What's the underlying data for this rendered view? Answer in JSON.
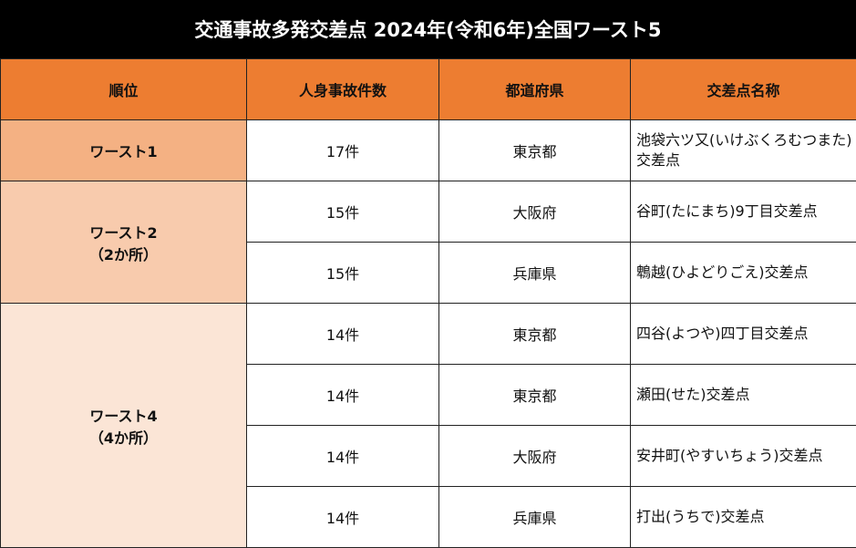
{
  "title": "交通事故多発交差点 2024年(令和6年)全国ワースト5",
  "headers": [
    "順位",
    "人身事故件数",
    "都道府県",
    "交差点名称"
  ],
  "colors": {
    "title_bg": "#000000",
    "header_bg": "#ED7D31",
    "rank1_bg": "#F4B183",
    "rank2_bg": "#F8CBAD",
    "rank4_bg": "#FBE5D6"
  },
  "groups": [
    {
      "rank": "ワースト1",
      "note": ""
    },
    {
      "rank": "ワースト2",
      "note": "（2か所）"
    },
    {
      "rank": "ワースト4",
      "note": "（4か所）"
    }
  ],
  "rows": [
    {
      "count": "17件",
      "pref": "東京都",
      "name": "池袋六ツ又(いけぶくろむつまた)交差点"
    },
    {
      "count": "15件",
      "pref": "大阪府",
      "name": "谷町(たにまち)9丁目交差点"
    },
    {
      "count": "15件",
      "pref": "兵庫県",
      "name": "鵯越(ひよどりごえ)交差点"
    },
    {
      "count": "14件",
      "pref": "東京都",
      "name": "四谷(よつや)四丁目交差点"
    },
    {
      "count": "14件",
      "pref": "東京都",
      "name": "瀬田(せた)交差点"
    },
    {
      "count": "14件",
      "pref": "大阪府",
      "name": "安井町(やすいちょう)交差点"
    },
    {
      "count": "14件",
      "pref": "兵庫県",
      "name": "打出(うちで)交差点"
    }
  ]
}
